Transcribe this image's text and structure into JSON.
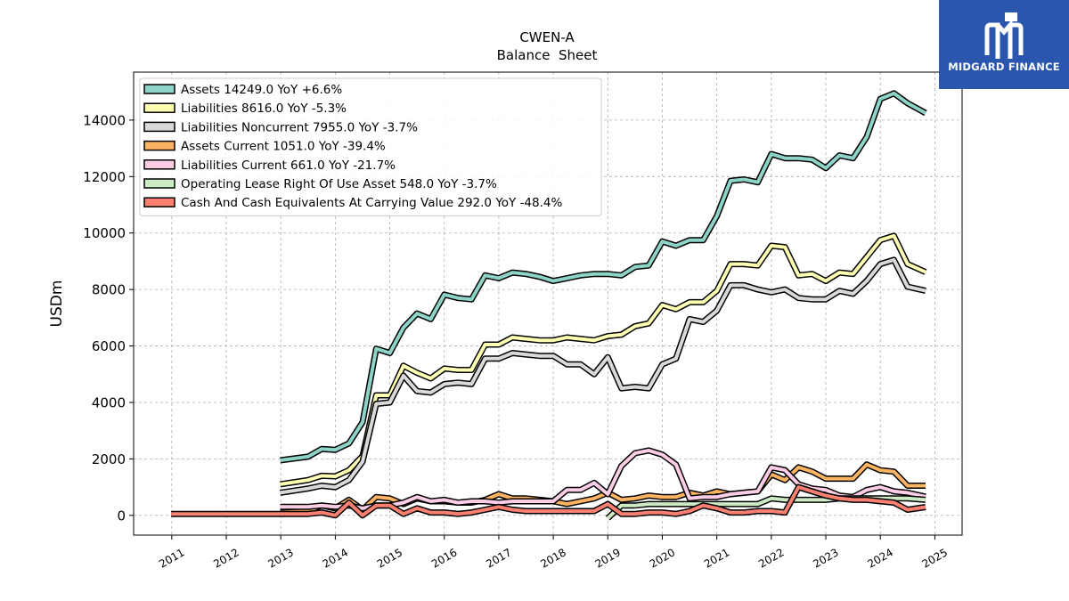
{
  "brand": {
    "name": "MIDGARD FINANCE",
    "logo_color": "#2a56ad"
  },
  "chart_data": {
    "type": "line",
    "title": "CWEN-A",
    "subtitle": "Balance  Sheet",
    "ylabel": "USDm",
    "xlabel": "",
    "xlim": [
      2010.3,
      2025.5
    ],
    "ylim": [
      -700,
      15700
    ],
    "xticks": [
      2011,
      2012,
      2013,
      2014,
      2015,
      2016,
      2017,
      2018,
      2019,
      2020,
      2021,
      2022,
      2023,
      2024,
      2025
    ],
    "xtick_labels": [
      "2011",
      "2012",
      "2013",
      "2014",
      "2015",
      "2016",
      "2017",
      "2018",
      "2019",
      "2020",
      "2021",
      "2022",
      "2023",
      "2024",
      "2025"
    ],
    "yticks": [
      0,
      2000,
      4000,
      6000,
      8000,
      10000,
      12000,
      14000
    ],
    "ytick_labels": [
      "0",
      "2000",
      "4000",
      "6000",
      "8000",
      "10000",
      "12000",
      "14000"
    ],
    "grid": true,
    "legend_position": "top-left",
    "series": [
      {
        "name": "Assets",
        "legend_label": "Assets  14249.0 YoY +6.6%",
        "color": "#8dd3c7",
        "x": [
          2012.99,
          2013.5,
          2013.75,
          2014.0,
          2014.25,
          2014.5,
          2014.75,
          2015.0,
          2015.25,
          2015.5,
          2015.75,
          2016.0,
          2016.25,
          2016.5,
          2016.75,
          2017.0,
          2017.25,
          2017.5,
          2017.75,
          2018.0,
          2018.25,
          2018.5,
          2018.75,
          2019.0,
          2019.25,
          2019.5,
          2019.75,
          2020.0,
          2020.25,
          2020.5,
          2020.75,
          2021.0,
          2021.25,
          2021.5,
          2021.75,
          2022.0,
          2022.25,
          2022.5,
          2022.75,
          2023.0,
          2023.25,
          2023.5,
          2023.75,
          2024.0,
          2024.25,
          2024.5,
          2024.83
        ],
        "y": [
          1950,
          2080,
          2350,
          2320,
          2550,
          3300,
          5900,
          5750,
          6650,
          7150,
          6950,
          7820,
          7700,
          7650,
          8500,
          8400,
          8600,
          8550,
          8450,
          8300,
          8400,
          8500,
          8550,
          8550,
          8500,
          8800,
          8850,
          9700,
          9550,
          9750,
          9750,
          10600,
          11850,
          11900,
          11800,
          12800,
          12650,
          12650,
          12600,
          12300,
          12750,
          12650,
          13400,
          14750,
          14950,
          14600,
          14249
        ]
      },
      {
        "name": "Liabilities",
        "legend_label": "Liabilities  8616.0 YoY -5.3%",
        "color": "#ffffb3",
        "x": [
          2012.99,
          2013.5,
          2013.75,
          2014.0,
          2014.25,
          2014.5,
          2014.75,
          2015.0,
          2015.25,
          2015.5,
          2015.75,
          2016.0,
          2016.25,
          2016.5,
          2016.75,
          2017.0,
          2017.25,
          2017.5,
          2017.75,
          2018.0,
          2018.25,
          2018.5,
          2018.75,
          2019.0,
          2019.25,
          2019.5,
          2019.75,
          2020.0,
          2020.25,
          2020.5,
          2020.75,
          2021.0,
          2021.25,
          2021.5,
          2021.75,
          2022.0,
          2022.25,
          2022.5,
          2022.75,
          2023.0,
          2023.25,
          2023.5,
          2023.75,
          2024.0,
          2024.25,
          2024.5,
          2024.83
        ],
        "y": [
          1100,
          1250,
          1400,
          1380,
          1600,
          2100,
          4250,
          4250,
          5300,
          5050,
          4850,
          5200,
          5150,
          5150,
          6050,
          6050,
          6300,
          6250,
          6200,
          6200,
          6300,
          6250,
          6200,
          6350,
          6400,
          6700,
          6800,
          7450,
          7300,
          7550,
          7550,
          7950,
          8900,
          8900,
          8850,
          9550,
          9500,
          8500,
          8550,
          8300,
          8600,
          8550,
          9150,
          9750,
          9900,
          8900,
          8616
        ]
      },
      {
        "name": "Liabilities Noncurrent",
        "legend_label": "Liabilities Noncurrent  7955.0 YoY -3.7%",
        "color": "#d9d9d9",
        "x": [
          2012.99,
          2013.5,
          2013.75,
          2014.0,
          2014.25,
          2014.5,
          2014.75,
          2015.0,
          2015.25,
          2015.5,
          2015.75,
          2016.0,
          2016.25,
          2016.5,
          2016.75,
          2017.0,
          2017.25,
          2017.5,
          2017.75,
          2018.0,
          2018.25,
          2018.5,
          2018.75,
          2019.0,
          2019.25,
          2019.5,
          2019.75,
          2020.0,
          2020.25,
          2020.5,
          2020.75,
          2021.0,
          2021.25,
          2021.5,
          2021.75,
          2022.0,
          2022.25,
          2022.5,
          2022.75,
          2023.0,
          2023.25,
          2023.5,
          2023.75,
          2024.0,
          2024.25,
          2024.5,
          2024.83
        ],
        "y": [
          800,
          950,
          1050,
          1000,
          1250,
          1900,
          3950,
          4000,
          4950,
          4400,
          4350,
          4650,
          4700,
          4650,
          5550,
          5550,
          5750,
          5700,
          5650,
          5650,
          5350,
          5350,
          5000,
          5600,
          4500,
          4550,
          4500,
          5350,
          5550,
          6950,
          6850,
          7250,
          8150,
          8150,
          8000,
          7900,
          8000,
          7700,
          7650,
          7650,
          7950,
          7850,
          8300,
          8900,
          9050,
          8100,
          7955
        ]
      },
      {
        "name": "Assets Current",
        "legend_label": "Assets Current  1051.0 YoY -39.4%",
        "color": "#fdb462",
        "x": [
          2012.99,
          2013.5,
          2013.75,
          2014.0,
          2014.25,
          2014.5,
          2014.75,
          2015.0,
          2015.25,
          2015.5,
          2015.75,
          2016.0,
          2016.25,
          2016.5,
          2016.75,
          2017.0,
          2017.25,
          2017.5,
          2017.75,
          2018.0,
          2018.25,
          2018.5,
          2018.75,
          2019.0,
          2019.25,
          2019.5,
          2019.75,
          2020.0,
          2020.25,
          2020.5,
          2020.75,
          2021.0,
          2021.25,
          2021.5,
          2021.75,
          2022.0,
          2022.25,
          2022.5,
          2022.75,
          2023.0,
          2023.25,
          2023.5,
          2023.75,
          2024.0,
          2024.25,
          2024.5,
          2024.83
        ],
        "y": [
          100,
          150,
          350,
          250,
          550,
          200,
          650,
          600,
          400,
          600,
          500,
          500,
          450,
          450,
          550,
          750,
          600,
          600,
          550,
          500,
          400,
          500,
          600,
          800,
          550,
          600,
          700,
          650,
          650,
          800,
          700,
          850,
          750,
          800,
          850,
          1450,
          1250,
          1700,
          1550,
          1300,
          1300,
          1300,
          1800,
          1600,
          1550,
          1050,
          1051
        ]
      },
      {
        "name": "Liabilities Current",
        "legend_label": "Liabilities Current  661.0 YoY -21.7%",
        "color": "#fccde5",
        "x": [
          2012.99,
          2013.5,
          2013.75,
          2014.0,
          2014.25,
          2014.5,
          2014.75,
          2015.0,
          2015.25,
          2015.5,
          2015.75,
          2016.0,
          2016.25,
          2016.5,
          2016.75,
          2017.0,
          2017.25,
          2017.5,
          2017.75,
          2018.0,
          2018.25,
          2018.5,
          2018.75,
          2019.0,
          2019.25,
          2019.5,
          2019.75,
          2020.0,
          2020.25,
          2020.5,
          2020.75,
          2021.0,
          2021.25,
          2021.5,
          2021.75,
          2022.0,
          2022.25,
          2022.5,
          2022.75,
          2023.0,
          2023.25,
          2023.5,
          2023.75,
          2024.0,
          2024.25,
          2024.5,
          2024.83
        ],
        "y": [
          300,
          300,
          350,
          300,
          350,
          250,
          350,
          350,
          450,
          650,
          500,
          550,
          450,
          500,
          500,
          450,
          500,
          500,
          500,
          500,
          900,
          900,
          1150,
          750,
          1750,
          2200,
          2300,
          2150,
          1800,
          600,
          650,
          650,
          750,
          800,
          850,
          1700,
          1600,
          1100,
          950,
          900,
          700,
          650,
          900,
          1000,
          850,
          800,
          661
        ]
      },
      {
        "name": "Operating Lease Right Of Use Asset",
        "legend_label": "Operating Lease Right Of Use Asset  548.0 YoY -3.7%",
        "color": "#ccebc5",
        "x": [
          2019.0,
          2019.25,
          2019.5,
          2019.75,
          2020.0,
          2020.25,
          2020.5,
          2020.75,
          2021.0,
          2021.25,
          2021.5,
          2021.75,
          2022.0,
          2022.25,
          2022.5,
          2022.75,
          2023.0,
          2023.25,
          2023.5,
          2023.75,
          2024.0,
          2024.25,
          2024.5,
          2024.83
        ],
        "y": [
          -100,
          350,
          350,
          400,
          400,
          400,
          400,
          400,
          400,
          400,
          400,
          400,
          600,
          550,
          550,
          550,
          550,
          600,
          600,
          600,
          600,
          600,
          600,
          548
        ]
      },
      {
        "name": "Cash And Cash Equivalents At Carrying Value",
        "legend_label": "Cash And Cash Equivalents At Carrying Value  292.0 YoY -48.4%",
        "color": "#fb8072",
        "x": [
          2010.99,
          2011.5,
          2012.0,
          2012.5,
          2012.99,
          2013.5,
          2013.75,
          2014.0,
          2014.25,
          2014.5,
          2014.75,
          2015.0,
          2015.25,
          2015.5,
          2015.75,
          2016.0,
          2016.25,
          2016.5,
          2016.75,
          2017.0,
          2017.25,
          2017.5,
          2017.75,
          2018.0,
          2018.25,
          2018.5,
          2018.75,
          2019.0,
          2019.25,
          2019.5,
          2019.75,
          2020.0,
          2020.25,
          2020.5,
          2020.75,
          2021.0,
          2021.25,
          2021.5,
          2021.75,
          2022.0,
          2022.25,
          2022.5,
          2022.75,
          2023.0,
          2023.25,
          2023.5,
          2023.75,
          2024.0,
          2024.25,
          2024.5,
          2024.83
        ],
        "y": [
          50,
          50,
          50,
          50,
          50,
          50,
          100,
          0,
          450,
          0,
          350,
          350,
          50,
          250,
          100,
          100,
          50,
          100,
          200,
          300,
          200,
          150,
          150,
          150,
          150,
          150,
          150,
          400,
          50,
          50,
          100,
          100,
          50,
          150,
          350,
          250,
          100,
          100,
          150,
          150,
          100,
          1000,
          850,
          700,
          600,
          550,
          550,
          500,
          450,
          200,
          292
        ]
      }
    ]
  }
}
